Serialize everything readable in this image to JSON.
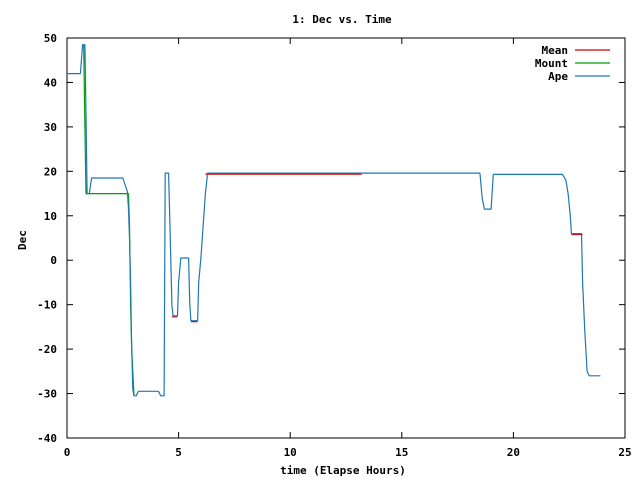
{
  "chart_data": {
    "type": "line",
    "title": "1: Dec vs. Time",
    "xlabel": "time (Elapse Hours)",
    "ylabel": "Dec",
    "xlim": [
      0,
      25
    ],
    "ylim": [
      -40,
      50
    ],
    "xticks": [
      0,
      5,
      10,
      15,
      20,
      25
    ],
    "yticks": [
      -40,
      -30,
      -20,
      -10,
      0,
      10,
      20,
      30,
      40,
      50
    ],
    "grid": false,
    "legend_position": "top-right",
    "series": [
      {
        "name": "Mean",
        "color": "#cc0000",
        "points": [
          [
            6.2,
            19.6
          ],
          [
            13.2,
            19.6
          ],
          [
            4.7,
            -12.5
          ],
          [
            4.95,
            -12.5
          ],
          [
            5.55,
            -13.6
          ],
          [
            5.85,
            -13.6
          ],
          [
            22.6,
            6.0
          ],
          [
            23.1,
            6.0
          ]
        ]
      },
      {
        "name": "Mount",
        "color": "#00a000",
        "points": [
          [
            0.75,
            48.5
          ],
          [
            0.8,
            30
          ],
          [
            0.85,
            15
          ],
          [
            2.75,
            15
          ],
          [
            2.8,
            8
          ],
          [
            2.85,
            -10
          ],
          [
            2.9,
            -20
          ],
          [
            3.0,
            -30.5
          ]
        ]
      },
      {
        "name": "Ape",
        "color": "#1f77b4",
        "points": [
          [
            0.0,
            42
          ],
          [
            0.6,
            42
          ],
          [
            0.7,
            48.5
          ],
          [
            0.8,
            48.5
          ],
          [
            0.85,
            33
          ],
          [
            0.9,
            15
          ],
          [
            1.0,
            15
          ],
          [
            1.1,
            18.5
          ],
          [
            2.5,
            18.5
          ],
          [
            2.6,
            17
          ],
          [
            2.7,
            15.5
          ],
          [
            2.75,
            12
          ],
          [
            2.8,
            5
          ],
          [
            2.85,
            -5
          ],
          [
            2.9,
            -20
          ],
          [
            2.95,
            -29
          ],
          [
            3.0,
            -30.5
          ],
          [
            3.1,
            -30.5
          ],
          [
            3.2,
            -29.5
          ],
          [
            4.1,
            -29.5
          ],
          [
            4.2,
            -30.5
          ],
          [
            4.35,
            -30.5
          ],
          [
            4.4,
            19.6
          ],
          [
            4.55,
            19.6
          ],
          [
            4.6,
            10
          ],
          [
            4.7,
            -10
          ],
          [
            4.75,
            -12.5
          ],
          [
            4.95,
            -12.5
          ],
          [
            5.0,
            -5
          ],
          [
            5.1,
            0.5
          ],
          [
            5.45,
            0.5
          ],
          [
            5.5,
            -10
          ],
          [
            5.55,
            -13.6
          ],
          [
            5.85,
            -13.6
          ],
          [
            5.9,
            -5
          ],
          [
            6.0,
            0.5
          ],
          [
            6.1,
            8
          ],
          [
            6.2,
            15
          ],
          [
            6.3,
            19.6
          ],
          [
            18.5,
            19.6
          ],
          [
            18.6,
            14
          ],
          [
            18.7,
            11.5
          ],
          [
            19.0,
            11.5
          ],
          [
            19.1,
            19.3
          ],
          [
            22.2,
            19.3
          ],
          [
            22.35,
            18
          ],
          [
            22.45,
            15
          ],
          [
            22.55,
            10
          ],
          [
            22.6,
            6.0
          ],
          [
            23.05,
            6.0
          ],
          [
            23.1,
            -5
          ],
          [
            23.2,
            -16
          ],
          [
            23.3,
            -25
          ],
          [
            23.4,
            -26
          ],
          [
            23.9,
            -26
          ]
        ]
      }
    ]
  }
}
